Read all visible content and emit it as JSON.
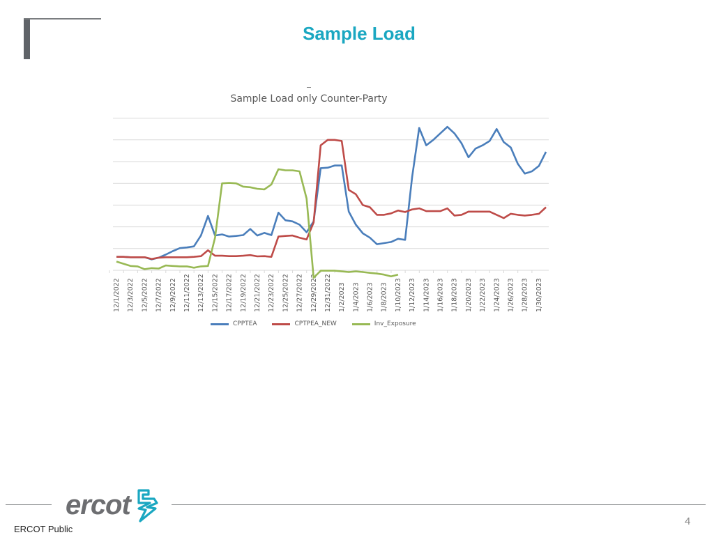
{
  "slide": {
    "title": "Sample Load",
    "page_number": "4",
    "footer_label": "ERCOT Public",
    "logo_text": "ercot",
    "colors": {
      "title": "#1aa7c1",
      "accent_bar": "#5f6368",
      "logo_gray": "#6d6e71",
      "logo_teal": "#1aa7c1"
    }
  },
  "chart_data": {
    "type": "line",
    "title": "Sample Load only Counter-Party",
    "xlabel": "",
    "ylabel": "",
    "y_tick_labels_visible": false,
    "ylim": [
      0,
      7
    ],
    "grid": true,
    "legend_position": "bottom",
    "x_tick_labels": [
      "12/1/2022",
      "12/3/2022",
      "12/5/2022",
      "12/7/2022",
      "12/9/2022",
      "12/11/2022",
      "12/13/2022",
      "12/15/2022",
      "12/17/2022",
      "12/19/2022",
      "12/21/2022",
      "12/23/2022",
      "12/25/2022",
      "12/27/2022",
      "12/29/2022",
      "12/31/2022",
      "1/2/2023",
      "1/4/2023",
      "1/6/2023",
      "1/8/2023",
      "1/10/2023",
      "1/12/2023",
      "1/14/2023",
      "1/16/2023",
      "1/18/2023",
      "1/20/2023",
      "1/22/2023",
      "1/24/2023",
      "1/26/2023",
      "1/28/2023",
      "1/30/2023"
    ],
    "x": [
      "12/1",
      "12/2",
      "12/3",
      "12/4",
      "12/5",
      "12/6",
      "12/7",
      "12/8",
      "12/9",
      "12/10",
      "12/11",
      "12/12",
      "12/13",
      "12/14",
      "12/15",
      "12/16",
      "12/17",
      "12/18",
      "12/19",
      "12/20",
      "12/21",
      "12/22",
      "12/23",
      "12/24",
      "12/25",
      "12/26",
      "12/27",
      "12/28",
      "12/29",
      "12/30",
      "12/31",
      "1/1",
      "1/2",
      "1/3",
      "1/4",
      "1/5",
      "1/6",
      "1/7",
      "1/8",
      "1/9",
      "1/10",
      "1/11",
      "1/12",
      "1/13",
      "1/14",
      "1/15",
      "1/16",
      "1/17",
      "1/18",
      "1/19",
      "1/20",
      "1/21",
      "1/22",
      "1/23",
      "1/24",
      "1/25",
      "1/26",
      "1/27",
      "1/28",
      "1/29",
      "1/30",
      "1/31"
    ],
    "series": [
      {
        "name": "CPPTEA",
        "color": "#4a7ebb",
        "values": [
          0.62,
          0.62,
          0.6,
          0.6,
          0.6,
          0.5,
          0.58,
          0.72,
          0.88,
          1.02,
          1.05,
          1.1,
          1.6,
          2.5,
          1.6,
          1.65,
          1.55,
          1.58,
          1.62,
          1.9,
          1.6,
          1.72,
          1.62,
          2.65,
          2.3,
          2.25,
          2.1,
          1.75,
          2.25,
          4.7,
          4.72,
          4.82,
          4.82,
          2.7,
          2.1,
          1.7,
          1.5,
          1.2,
          1.25,
          1.3,
          1.45,
          1.4,
          4.3,
          6.55,
          5.75,
          6.0,
          6.3,
          6.6,
          6.3,
          5.85,
          5.2,
          5.6,
          5.75,
          5.95,
          6.5,
          5.9,
          5.65,
          4.9,
          4.45,
          4.55,
          4.8,
          5.45
        ]
      },
      {
        "name": "CPTPEA_NEW",
        "color": "#be4b48",
        "values": [
          0.62,
          0.62,
          0.6,
          0.6,
          0.6,
          0.52,
          0.58,
          0.6,
          0.6,
          0.6,
          0.6,
          0.62,
          0.65,
          0.92,
          0.67,
          0.67,
          0.65,
          0.65,
          0.67,
          0.7,
          0.64,
          0.65,
          0.62,
          1.55,
          1.58,
          1.6,
          1.5,
          1.42,
          2.2,
          5.75,
          6.0,
          6.0,
          5.95,
          3.7,
          3.5,
          3.0,
          2.9,
          2.55,
          2.55,
          2.62,
          2.75,
          2.68,
          2.8,
          2.85,
          2.72,
          2.72,
          2.72,
          2.85,
          2.52,
          2.55,
          2.7,
          2.7,
          2.7,
          2.7,
          2.55,
          2.4,
          2.6,
          2.55,
          2.52,
          2.55,
          2.6,
          2.9
        ]
      },
      {
        "name": "Inv_Exposure",
        "color": "#98b954",
        "values": [
          0.4,
          0.3,
          0.2,
          0.18,
          0.05,
          0.1,
          0.08,
          0.22,
          0.2,
          0.18,
          0.18,
          0.12,
          0.18,
          0.2,
          1.5,
          4.0,
          4.02,
          4.0,
          3.85,
          3.82,
          3.75,
          3.72,
          3.95,
          4.65,
          4.6,
          4.6,
          4.55,
          3.3,
          -0.35,
          -0.02,
          -0.02,
          -0.02,
          -0.05,
          -0.08,
          -0.05,
          -0.08,
          -0.12,
          -0.15,
          -0.2,
          -0.28,
          -0.2
        ]
      }
    ]
  }
}
